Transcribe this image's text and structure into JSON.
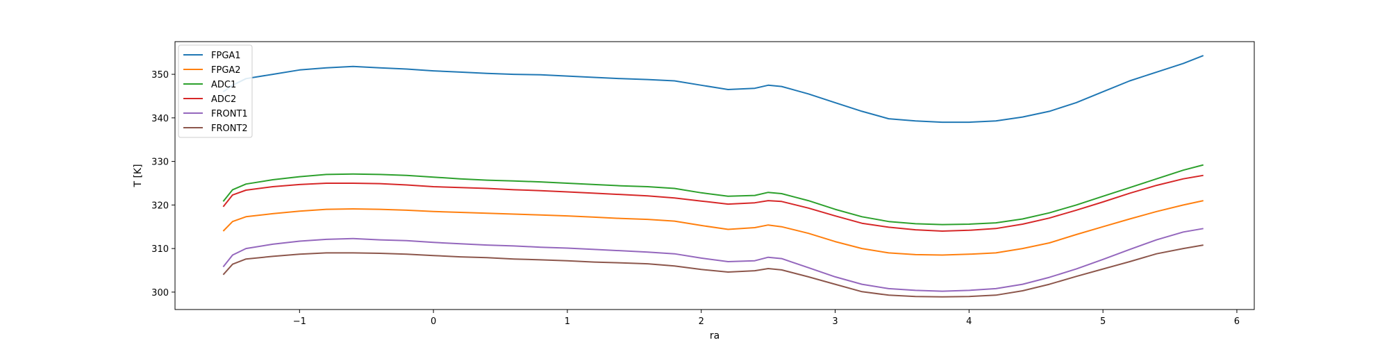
{
  "chart_data": {
    "type": "line",
    "title": "",
    "xlabel": "ra",
    "ylabel": "T [K]",
    "xlim": [
      -1.93,
      6.13
    ],
    "ylim": [
      296,
      357.5
    ],
    "xticks": [
      -1,
      0,
      1,
      2,
      3,
      4,
      5,
      6
    ],
    "yticks": [
      300,
      310,
      320,
      330,
      340,
      350
    ],
    "grid": false,
    "legend_position": "top-left",
    "x": [
      -1.57,
      -1.5,
      -1.4,
      -1.2,
      -1.0,
      -0.8,
      -0.6,
      -0.4,
      -0.2,
      0.0,
      0.2,
      0.4,
      0.6,
      0.8,
      1.0,
      1.2,
      1.4,
      1.6,
      1.8,
      2.0,
      2.2,
      2.4,
      2.5,
      2.6,
      2.8,
      3.0,
      3.2,
      3.4,
      3.6,
      3.8,
      4.0,
      4.2,
      4.4,
      4.6,
      4.8,
      5.0,
      5.2,
      5.4,
      5.6,
      5.75
    ],
    "series": [
      {
        "name": "FPGA1",
        "color": "#1f77b4",
        "values": [
          346.0,
          347.5,
          349.0,
          350.0,
          351.0,
          351.5,
          351.8,
          351.5,
          351.2,
          350.8,
          350.5,
          350.2,
          350.0,
          349.9,
          349.6,
          349.3,
          349.0,
          348.8,
          348.5,
          347.5,
          346.5,
          346.8,
          347.5,
          347.2,
          345.5,
          343.5,
          341.5,
          339.8,
          339.3,
          339.0,
          339.0,
          339.3,
          340.2,
          341.5,
          343.5,
          346.0,
          348.5,
          350.5,
          352.5,
          354.3
        ]
      },
      {
        "name": "FPGA2",
        "color": "#ff7f0e",
        "values": [
          314.0,
          316.2,
          317.3,
          318.0,
          318.6,
          319.0,
          319.1,
          319.0,
          318.8,
          318.5,
          318.3,
          318.1,
          317.9,
          317.7,
          317.5,
          317.2,
          316.9,
          316.7,
          316.3,
          315.3,
          314.4,
          314.8,
          315.4,
          315.0,
          313.5,
          311.6,
          310.0,
          309.0,
          308.6,
          308.5,
          308.7,
          309.0,
          310.0,
          311.3,
          313.2,
          315.0,
          316.8,
          318.5,
          320.0,
          321.0
        ]
      },
      {
        "name": "ADC1",
        "color": "#2ca02c",
        "values": [
          320.8,
          323.5,
          324.8,
          325.8,
          326.5,
          327.0,
          327.1,
          327.0,
          326.8,
          326.4,
          326.0,
          325.7,
          325.5,
          325.3,
          325.0,
          324.7,
          324.4,
          324.2,
          323.8,
          322.8,
          322.0,
          322.2,
          322.9,
          322.6,
          321.0,
          319.0,
          317.3,
          316.2,
          315.7,
          315.5,
          315.6,
          315.9,
          316.8,
          318.2,
          320.0,
          322.0,
          324.0,
          326.0,
          328.0,
          329.2
        ]
      },
      {
        "name": "ADC2",
        "color": "#d62728",
        "values": [
          319.6,
          322.3,
          323.4,
          324.2,
          324.7,
          325.0,
          325.0,
          324.9,
          324.6,
          324.2,
          324.0,
          323.8,
          323.5,
          323.3,
          323.0,
          322.7,
          322.4,
          322.1,
          321.6,
          320.9,
          320.2,
          320.5,
          321.0,
          320.8,
          319.3,
          317.5,
          315.8,
          314.9,
          314.3,
          314.0,
          314.2,
          314.6,
          315.6,
          317.0,
          318.8,
          320.7,
          322.7,
          324.5,
          326.0,
          326.8
        ]
      },
      {
        "name": "FRONT1",
        "color": "#9467bd",
        "values": [
          305.8,
          308.5,
          310.0,
          311.0,
          311.7,
          312.1,
          312.3,
          312.0,
          311.8,
          311.4,
          311.1,
          310.8,
          310.6,
          310.3,
          310.1,
          309.8,
          309.5,
          309.2,
          308.8,
          307.8,
          307.0,
          307.2,
          308.0,
          307.7,
          305.6,
          303.5,
          301.8,
          300.8,
          300.4,
          300.2,
          300.4,
          300.8,
          301.8,
          303.4,
          305.3,
          307.5,
          309.8,
          312.0,
          313.8,
          314.6
        ]
      },
      {
        "name": "FRONT2",
        "color": "#8c564b",
        "values": [
          304.0,
          306.4,
          307.6,
          308.2,
          308.7,
          309.0,
          309.0,
          308.9,
          308.7,
          308.4,
          308.1,
          307.9,
          307.6,
          307.4,
          307.2,
          306.9,
          306.7,
          306.5,
          306.0,
          305.2,
          304.6,
          304.9,
          305.4,
          305.1,
          303.5,
          301.8,
          300.1,
          299.3,
          299.0,
          298.9,
          299.0,
          299.3,
          300.3,
          301.8,
          303.6,
          305.3,
          307.0,
          308.8,
          310.0,
          310.8
        ]
      }
    ]
  }
}
